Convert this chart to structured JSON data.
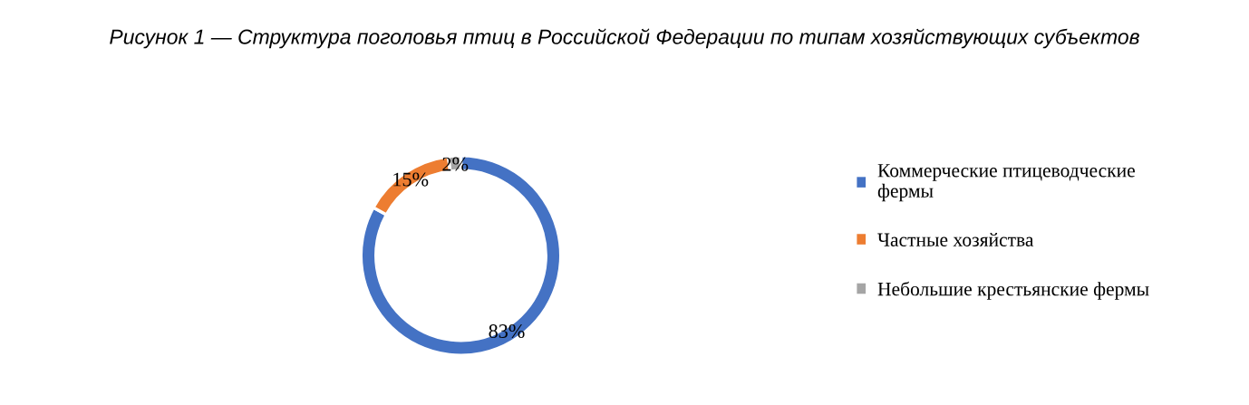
{
  "chart_data": {
    "type": "donut",
    "title": "Рисунок 1 — Структура поголовья птиц в Российской Федерации по типам хозяйствующих субъектов",
    "categories": [
      "Коммерческие птицеводческие фермы",
      "Частные хозяйства",
      "Небольшие крестьянские фермы"
    ],
    "values": [
      83,
      15,
      2
    ],
    "colors": [
      "#4472c4",
      "#ed7d31",
      "#a5a5a5"
    ],
    "value_labels": [
      "83%",
      "15%",
      "2%"
    ],
    "legend": "right"
  }
}
